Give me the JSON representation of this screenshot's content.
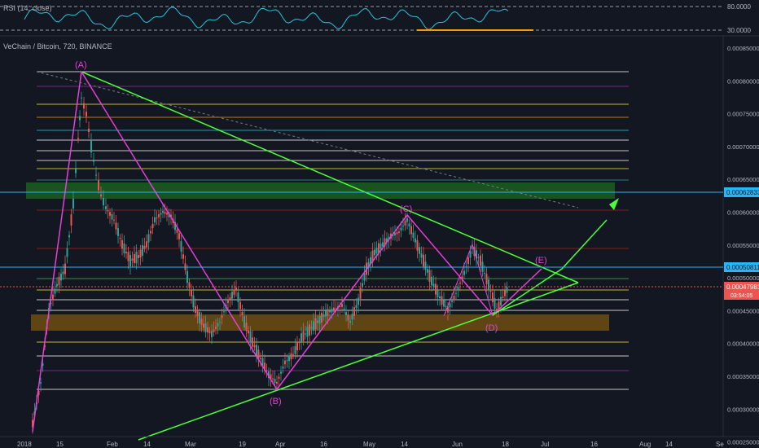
{
  "colors": {
    "bg": "#131722",
    "grid": "#1e2230",
    "text": "#b2b5be",
    "up": "#26a69a",
    "down": "#ef5350",
    "wave": "#e63fd6",
    "trend": "#4cff3a",
    "rsi": "#26c6da",
    "rsi_signal": "#ff9800",
    "price_tag": "#ef5350",
    "level_tag": "#29b6f6"
  },
  "rsi_pane": {
    "title": "RSI (14, close)",
    "levels": [
      "80.0000",
      "30.0000"
    ]
  },
  "main_pane": {
    "title": "VeChain / Bitcoin, 720, BINANCE",
    "price_scale": [
      "0.00085000",
      "0.00080000",
      "0.00075000",
      "0.00070000",
      "0.00065000",
      "0.00060000",
      "0.00055000",
      "0.00050000",
      "0.00045000",
      "0.00040000",
      "0.00035000",
      "0.00030000",
      "0.00025000"
    ],
    "tags": {
      "upper_level": "0.00062833",
      "mid_level": "0.00050811",
      "last_price": "0.00047981",
      "countdown": "03:54:05"
    },
    "time_axis": [
      "2018",
      "15",
      "Feb",
      "14",
      "Mar",
      "19",
      "Apr",
      "16",
      "May",
      "14",
      "Jun",
      "18",
      "Jul",
      "16",
      "Aug",
      "14",
      "Se"
    ],
    "wave_labels": [
      "(A)",
      "(B)",
      "(C)",
      "(D)",
      "(E)"
    ]
  }
}
